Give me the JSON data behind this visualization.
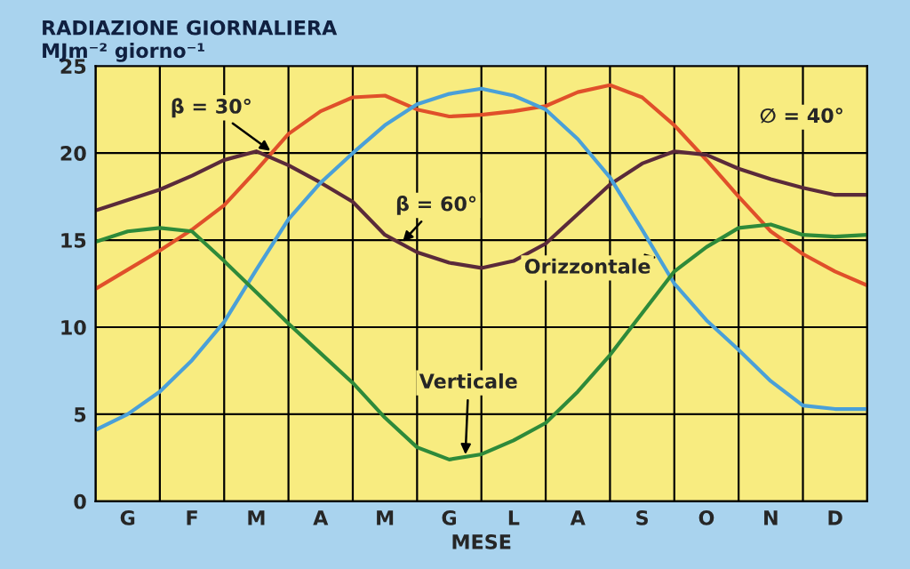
{
  "chart_data": {
    "type": "line",
    "title": "RADIAZIONE GIORNALIERA",
    "ylabel": "MJm⁻² giorno⁻¹",
    "xlabel": "MESE",
    "annotations": [
      "∅ = 40°"
    ],
    "categories": [
      null,
      "G",
      null,
      "F",
      null,
      "M",
      null,
      "A",
      null,
      "M",
      null,
      "G",
      null,
      "L",
      null,
      "A",
      null,
      "S",
      null,
      "O",
      null,
      "N",
      null,
      "D",
      null
    ],
    "series": [
      {
        "name": "β = 30°",
        "color": "#e0502a",
        "values": [
          12.2,
          13.3,
          14.4,
          15.6,
          17.0,
          19.0,
          21.1,
          22.4,
          23.2,
          23.3,
          22.5,
          22.1,
          22.2,
          22.4,
          22.7,
          23.5,
          23.9,
          23.2,
          21.6,
          19.6,
          17.5,
          15.5,
          14.2,
          13.2,
          12.4
        ]
      },
      {
        "name": "β = 60°",
        "color": "#5a2a3a",
        "values": [
          16.7,
          17.3,
          17.9,
          18.7,
          19.6,
          20.1,
          19.3,
          18.3,
          17.2,
          15.3,
          14.3,
          13.7,
          13.4,
          13.8,
          14.8,
          16.5,
          18.2,
          19.4,
          20.1,
          19.9,
          19.1,
          18.5,
          18.0,
          17.6,
          17.6
        ]
      },
      {
        "name": "Orizzontale",
        "color": "#4aa0d8",
        "values": [
          4.1,
          5.0,
          6.3,
          8.1,
          10.3,
          13.3,
          16.2,
          18.3,
          20.0,
          21.6,
          22.8,
          23.4,
          23.7,
          23.3,
          22.5,
          20.8,
          18.6,
          15.6,
          12.5,
          10.4,
          8.7,
          6.9,
          5.5,
          5.3,
          5.3
        ]
      },
      {
        "name": "Verticale",
        "color": "#2e8a3a",
        "values": [
          14.9,
          15.5,
          15.7,
          15.5,
          13.8,
          12.0,
          10.2,
          8.5,
          6.8,
          4.8,
          3.1,
          2.4,
          2.7,
          3.5,
          4.5,
          6.3,
          8.4,
          10.8,
          13.2,
          14.6,
          15.7,
          15.9,
          15.3,
          15.2,
          15.3
        ]
      }
    ],
    "ylim": [
      0,
      25
    ],
    "yticks": [
      0,
      5,
      10,
      15,
      20,
      25
    ],
    "grid": true,
    "legend": false,
    "marker": "none",
    "line_style": "solid"
  }
}
